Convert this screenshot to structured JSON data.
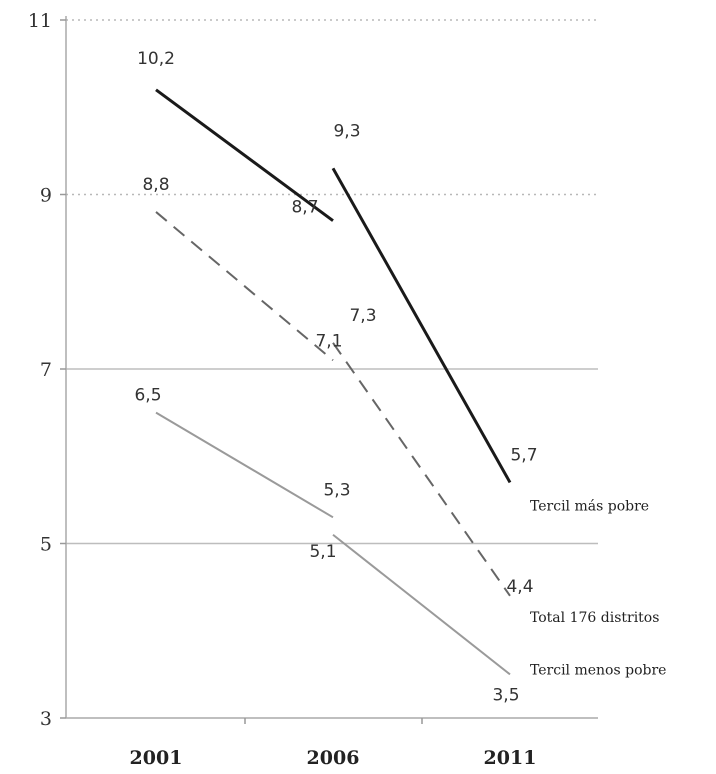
{
  "chart_data": {
    "type": "line",
    "x_categories": [
      "2001",
      "2006",
      "2011"
    ],
    "y_ticks": [
      "3",
      "5",
      "7",
      "9",
      "11"
    ],
    "ylim": [
      3,
      11
    ],
    "grid": {
      "dotted_at": [
        9,
        11
      ],
      "solid_at": [
        5,
        7
      ]
    },
    "series": [
      {
        "name": "Tercil más pobre",
        "style": "solid",
        "color": "#1a1a1a",
        "segments": [
          {
            "x": [
              "2001",
              "2006"
            ],
            "values": [
              10.2,
              8.7
            ],
            "labels": [
              "10,2",
              "8,7"
            ]
          },
          {
            "x": [
              "2006",
              "2011"
            ],
            "values": [
              9.3,
              5.7
            ],
            "labels": [
              "9,3",
              "5,7"
            ]
          }
        ]
      },
      {
        "name": "Total 176 distritos",
        "style": "dashed",
        "color": "#666666",
        "segments": [
          {
            "x": [
              "2001",
              "2006"
            ],
            "values": [
              8.8,
              7.1
            ],
            "labels": [
              "8,8",
              "7,1"
            ]
          },
          {
            "x": [
              "2006",
              "2011"
            ],
            "values": [
              7.3,
              4.4
            ],
            "labels": [
              "7,3",
              "4,4"
            ]
          }
        ]
      },
      {
        "name": "Tercil menos pobre",
        "style": "solid",
        "color": "#9a9a9a",
        "segments": [
          {
            "x": [
              "2001",
              "2006"
            ],
            "values": [
              6.5,
              5.3
            ],
            "labels": [
              "6,5",
              "5,3"
            ]
          },
          {
            "x": [
              "2006",
              "2011"
            ],
            "values": [
              5.1,
              3.5
            ],
            "labels": [
              "5,1",
              "3,5"
            ]
          }
        ]
      }
    ]
  }
}
